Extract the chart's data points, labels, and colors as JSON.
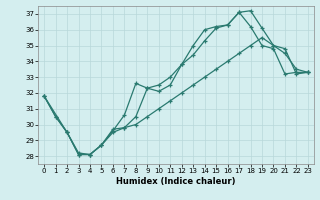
{
  "xlabel": "Humidex (Indice chaleur)",
  "background_color": "#d4eeef",
  "grid_color": "#b8d8da",
  "line_color": "#2a7a70",
  "xlim": [
    -0.5,
    23.5
  ],
  "ylim": [
    27.5,
    37.5
  ],
  "xticks": [
    0,
    1,
    2,
    3,
    4,
    5,
    6,
    7,
    8,
    9,
    10,
    11,
    12,
    13,
    14,
    15,
    16,
    17,
    18,
    19,
    20,
    21,
    22,
    23
  ],
  "yticks": [
    28,
    29,
    30,
    31,
    32,
    33,
    34,
    35,
    36,
    37
  ],
  "line_a_x": [
    0,
    1,
    2,
    3,
    4,
    5,
    6,
    7,
    8,
    9,
    10,
    11,
    12,
    13,
    14,
    15,
    16,
    17,
    18,
    19,
    20,
    21,
    22,
    23
  ],
  "line_a_y": [
    31.8,
    30.5,
    29.5,
    28.1,
    28.1,
    28.7,
    29.7,
    29.8,
    30.5,
    32.3,
    32.1,
    32.5,
    33.8,
    34.4,
    35.3,
    36.1,
    36.3,
    37.1,
    37.2,
    36.1,
    35.0,
    34.8,
    33.2,
    33.3
  ],
  "line_b_x": [
    0,
    1,
    2,
    3,
    4,
    5,
    6,
    7,
    8,
    9,
    10,
    11,
    12,
    13,
    14,
    15,
    16,
    17,
    18,
    19,
    20,
    21,
    22,
    23
  ],
  "line_b_y": [
    31.8,
    30.5,
    29.5,
    28.1,
    28.1,
    28.7,
    29.6,
    30.6,
    32.6,
    32.3,
    32.5,
    33.0,
    33.8,
    35.0,
    36.0,
    36.2,
    36.3,
    37.1,
    36.2,
    35.0,
    34.8,
    33.2,
    33.3,
    33.3
  ],
  "line_c_x": [
    0,
    2,
    3,
    4,
    5,
    6,
    7,
    8,
    9,
    10,
    11,
    12,
    13,
    14,
    15,
    16,
    17,
    18,
    19,
    20,
    21,
    22,
    23
  ],
  "line_c_y": [
    31.8,
    29.5,
    28.2,
    28.1,
    28.7,
    29.5,
    29.8,
    30.0,
    30.5,
    31.0,
    31.5,
    32.0,
    32.5,
    33.0,
    33.5,
    34.0,
    34.5,
    35.0,
    35.5,
    35.0,
    34.5,
    33.5,
    33.3
  ]
}
